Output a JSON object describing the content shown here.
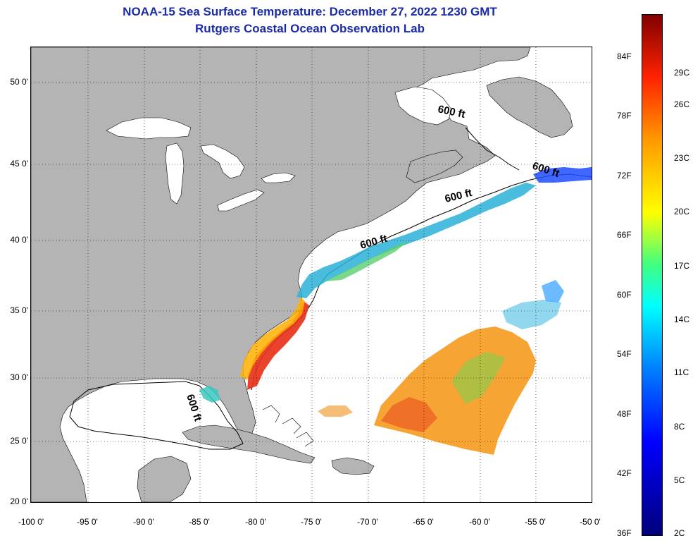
{
  "title": "NOAA-15 Sea Surface Temperature:  December 27, 2022 1230 GMT",
  "subtitle": "Rutgers Coastal Ocean Observation Lab",
  "map": {
    "lat_labels": [
      "50 0'",
      "45 0'",
      "40 0'",
      "35 0'",
      "30 0'",
      "25 0'",
      "20 0'"
    ],
    "lon_labels": [
      "-100 0'",
      "-95 0'",
      "-90 0'",
      "-85 0'",
      "-80 0'",
      "-75 0'",
      "-70 0'",
      "-65 0'",
      "-60 0'",
      "-55 0'",
      "-50 0'"
    ],
    "contour_label": "600 ft",
    "colors": {
      "land": "#b4b4b4",
      "ocean": "#ffffff",
      "title": "#1a2aa8"
    }
  },
  "colorbar": {
    "fahrenheit_labels": [
      "84F",
      "78F",
      "72F",
      "66F",
      "60F",
      "54F",
      "48F",
      "42F",
      "36F"
    ],
    "celsius_labels": [
      "29C",
      "26C",
      "23C",
      "20C",
      "17C",
      "14C",
      "11C",
      "8C",
      "5C",
      "2C"
    ]
  }
}
